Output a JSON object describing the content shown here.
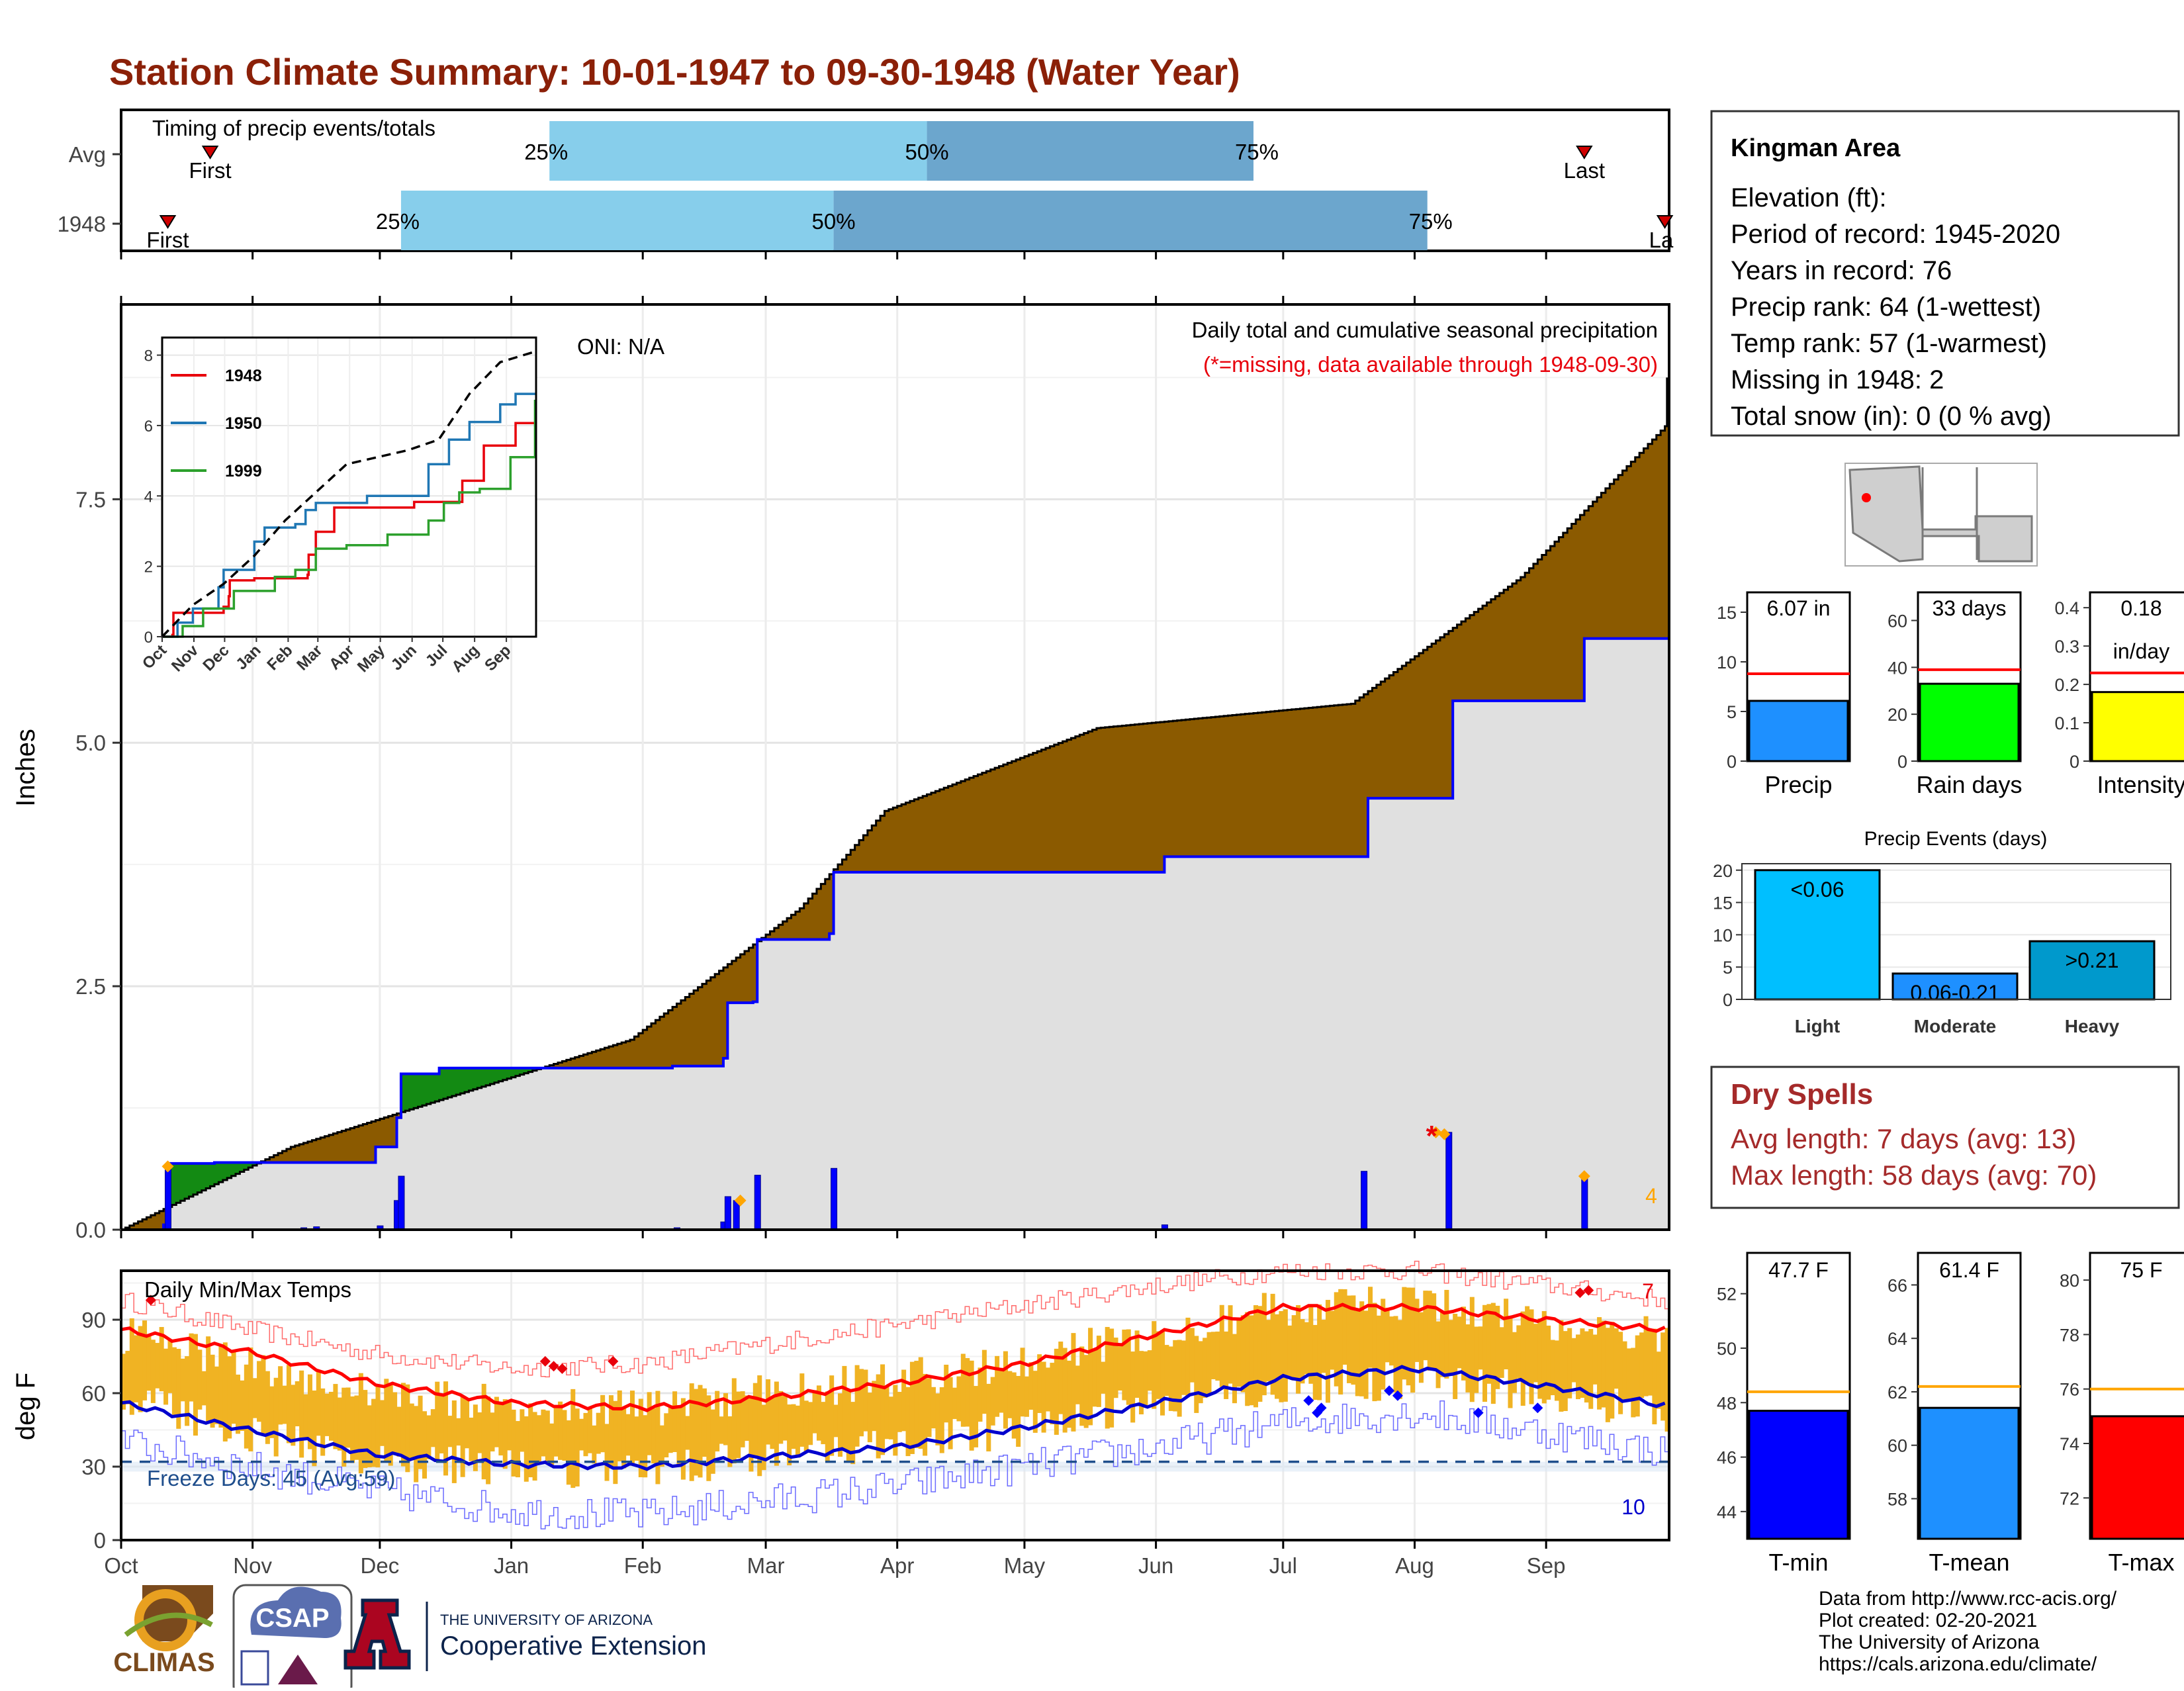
{
  "title": "Station Climate Summary: 10-01-1947 to 09-30-1948 (Water Year)",
  "colors": {
    "title": "#8b2008",
    "accent_red": "#e8000b",
    "dry_spell": "#a52a2a",
    "cum_fill": "#8b5a00",
    "below_fill": "#138a13",
    "avg_fill": "#e0e0e0",
    "pct_light": "#87ceeb",
    "pct_dark": "#6ca6cd",
    "temp_bar": "#f0b323"
  },
  "timing_panel": {
    "label": "Timing of precip events/totals",
    "rows": [
      {
        "name": "Avg",
        "first_label": "First",
        "last_label": "Last",
        "first_doy": 21,
        "last_doy": 345,
        "p25": 101,
        "p50": 190,
        "p75": 267,
        "p25_label": "25%",
        "p50_label": "50%",
        "p75_label": "75%"
      },
      {
        "name": "1948",
        "first_label": "First",
        "last_label": "La",
        "first_doy": 11,
        "last_doy": 364,
        "p25": 66,
        "p50": 168,
        "p75": 308,
        "p25_label": "25%",
        "p50_label": "50%",
        "p75_label": "75%"
      }
    ]
  },
  "months": [
    "Oct",
    "Nov",
    "Dec",
    "Jan",
    "Feb",
    "Mar",
    "Apr",
    "May",
    "Jun",
    "Jul",
    "Aug",
    "Sep"
  ],
  "month_starts": [
    0,
    31,
    61,
    92,
    123,
    152,
    183,
    213,
    244,
    274,
    305,
    336
  ],
  "precip_panel": {
    "ylabel": "Inches",
    "ylim": [
      0,
      9.5
    ],
    "yticks": [
      0.0,
      2.5,
      5.0,
      7.5
    ],
    "ytick_labels": [
      "0.0",
      "2.5",
      "5.0",
      "7.5"
    ],
    "oni": "ONI: N/A",
    "heading": "Daily total and cumulative seasonal precipitation",
    "note": "(*=missing, data available through 1948-09-30)",
    "corner_count": "4"
  },
  "chart_data": [
    {
      "type": "area",
      "name": "cumulative-precip",
      "x_unit": "day of water year",
      "avg_cumulative": {
        "x": [
          0,
          40,
          120,
          160,
          180,
          230,
          290,
          330,
          364
        ],
        "y": [
          0.0,
          0.85,
          1.95,
          3.3,
          4.3,
          5.15,
          5.4,
          6.7,
          8.25
        ]
      },
      "observed_cumulative": {
        "x": [
          0,
          10,
          11,
          21,
          22,
          60,
          65,
          66,
          75,
          78,
          91,
          130,
          142,
          143,
          149,
          150,
          167,
          168,
          246,
          293,
          294,
          313,
          314,
          344,
          345,
          364
        ],
        "y": [
          0.0,
          0.05,
          0.68,
          0.68,
          0.69,
          0.85,
          1.15,
          1.6,
          1.66,
          1.66,
          1.66,
          1.68,
          1.76,
          2.33,
          2.34,
          2.98,
          3.04,
          3.67,
          3.83,
          3.83,
          4.43,
          4.43,
          5.43,
          5.43,
          6.07,
          6.07
        ]
      },
      "daily_bars": [
        {
          "day": 11,
          "value": 0.63
        },
        {
          "day": 43,
          "value": 0.02
        },
        {
          "day": 46,
          "value": 0.03
        },
        {
          "day": 61,
          "value": 0.04
        },
        {
          "day": 65,
          "value": 0.3
        },
        {
          "day": 66,
          "value": 0.55
        },
        {
          "day": 131,
          "value": 0.02
        },
        {
          "day": 142,
          "value": 0.08
        },
        {
          "day": 143,
          "value": 0.34
        },
        {
          "day": 145,
          "value": 0.3
        },
        {
          "day": 150,
          "value": 0.56
        },
        {
          "day": 157,
          "value": 0.01
        },
        {
          "day": 168,
          "value": 0.63
        },
        {
          "day": 246,
          "value": 0.05
        },
        {
          "day": 293,
          "value": 0.6
        },
        {
          "day": 313,
          "value": 1.0
        },
        {
          "day": 345,
          "value": 0.55
        }
      ],
      "missing_markers": [
        {
          "day": 309,
          "value": 1.0
        }
      ],
      "markers": [
        {
          "day": 11,
          "value": 0.65
        },
        {
          "day": 146,
          "value": 0.3
        },
        {
          "day": 310,
          "value": 1.0
        },
        {
          "day": 312,
          "value": 0.98
        },
        {
          "day": 345,
          "value": 0.55
        }
      ],
      "max_cumulative_top": 8.75
    },
    {
      "type": "line",
      "name": "inset-comparison",
      "categories": [
        "Oct",
        "Nov",
        "Dec",
        "Jan",
        "Feb",
        "Mar",
        "Apr",
        "May",
        "Jun",
        "Jul",
        "Aug",
        "Sep"
      ],
      "ylim": [
        0,
        8.5
      ],
      "yticks": [
        0,
        2,
        4,
        6,
        8
      ],
      "avg_dashed": {
        "x": [
          0,
          30,
          60,
          90,
          120,
          150,
          180,
          210,
          240,
          270,
          300,
          330,
          364
        ],
        "y": [
          0.0,
          0.9,
          1.5,
          2.3,
          3.3,
          4.1,
          4.9,
          5.1,
          5.3,
          5.6,
          6.9,
          7.8,
          8.1
        ]
      },
      "series": [
        {
          "name": "1948",
          "color": "#e8000b",
          "x": [
            0,
            10,
            11,
            60,
            65,
            66,
            90,
            142,
            143,
            150,
            168,
            246,
            293,
            313,
            314,
            345,
            364
          ],
          "y": [
            0.0,
            0.05,
            0.68,
            0.85,
            1.15,
            1.6,
            1.66,
            1.76,
            2.33,
            2.98,
            3.67,
            3.83,
            4.43,
            4.43,
            5.43,
            6.07,
            6.07
          ]
        },
        {
          "name": "1950",
          "color": "#1f77b4",
          "x": [
            0,
            15,
            30,
            55,
            60,
            90,
            100,
            130,
            140,
            150,
            200,
            250,
            260,
            280,
            300,
            330,
            345,
            364
          ],
          "y": [
            0.0,
            0.4,
            0.8,
            1.4,
            1.9,
            2.7,
            3.1,
            3.2,
            3.6,
            3.8,
            4.0,
            4.0,
            4.9,
            5.6,
            6.1,
            6.6,
            6.9,
            6.9
          ]
        },
        {
          "name": "1999",
          "color": "#2ca02c",
          "x": [
            0,
            20,
            40,
            70,
            110,
            130,
            150,
            180,
            220,
            260,
            275,
            290,
            310,
            340,
            364
          ],
          "y": [
            0.0,
            0.3,
            0.8,
            1.3,
            1.7,
            1.9,
            2.5,
            2.6,
            2.9,
            3.3,
            3.8,
            4.1,
            4.2,
            5.1,
            6.7
          ]
        }
      ]
    },
    {
      "type": "bar",
      "name": "daily-temps",
      "ylim": [
        0,
        110
      ],
      "yticks": [
        0,
        30,
        60,
        90
      ],
      "avg_max": {
        "x": [
          0,
          30,
          60,
          92,
          123,
          152,
          183,
          213,
          244,
          274,
          305,
          336,
          364
        ],
        "y": [
          86,
          77,
          64,
          56,
          54,
          58,
          64,
          72,
          84,
          95,
          95,
          90,
          86
        ]
      },
      "avg_min": {
        "x": [
          0,
          30,
          60,
          92,
          123,
          152,
          183,
          213,
          244,
          274,
          305,
          336,
          364
        ],
        "y": [
          56,
          45,
          35,
          31,
          30,
          34,
          38,
          46,
          56,
          66,
          70,
          63,
          55
        ]
      },
      "record_high": {
        "x": [
          0,
          30,
          60,
          92,
          123,
          152,
          183,
          213,
          244,
          274,
          305,
          336,
          364
        ],
        "y": [
          98,
          86,
          76,
          70,
          72,
          80,
          88,
          96,
          104,
          110,
          110,
          104,
          98
        ]
      },
      "record_low": {
        "x": [
          0,
          30,
          60,
          92,
          123,
          152,
          183,
          213,
          244,
          274,
          305,
          336,
          364
        ],
        "y": [
          40,
          30,
          20,
          12,
          10,
          16,
          22,
          30,
          38,
          48,
          52,
          44,
          36
        ]
      },
      "obs_high": {
        "x": [
          0,
          30,
          60,
          92,
          123,
          152,
          183,
          213,
          244,
          274,
          305,
          336,
          364
        ],
        "y": [
          84,
          72,
          60,
          56,
          54,
          60,
          66,
          72,
          86,
          95,
          96,
          90,
          82
        ]
      },
      "obs_low": {
        "x": [
          0,
          30,
          60,
          92,
          123,
          152,
          183,
          213,
          244,
          274,
          305,
          336,
          364
        ],
        "y": [
          58,
          44,
          32,
          30,
          28,
          34,
          40,
          46,
          56,
          62,
          66,
          60,
          52
        ]
      },
      "record_high_days": [
        7,
        100,
        102,
        104,
        116,
        344,
        346
      ],
      "record_high_values": [
        98,
        73,
        71,
        70,
        73,
        101,
        102
      ],
      "record_low_days": [
        280,
        282,
        283,
        299,
        301,
        320,
        334
      ],
      "record_low_values": [
        57,
        52,
        54,
        61,
        59,
        52,
        54
      ],
      "freeze_line": 32
    }
  ],
  "temp_panel": {
    "ylabel": "deg F",
    "title": "Daily Min/Max Temps",
    "freeze_days": "Freeze Days: 45 (Avg:59)",
    "count_high": "7",
    "count_low": "10"
  },
  "station_box": {
    "name": "Kingman Area",
    "lines": [
      "Elevation (ft):",
      "Period of record: 1945-2020",
      "Years in record: 76",
      "Precip rank: 64 (1-wettest)",
      "Temp rank: 57 (1-warmest)",
      "Missing in 1948: 2",
      "Total snow (in): 0 (0 % avg)"
    ]
  },
  "summary_bars": [
    {
      "label": "Precip",
      "value": 6.07,
      "avg": 8.8,
      "text": "6.07 in",
      "text2": "",
      "ylim": [
        0,
        17
      ],
      "yticks": [
        0,
        5,
        10,
        15
      ],
      "color": "#1e90ff"
    },
    {
      "label": "Rain days",
      "value": 33,
      "avg": 39,
      "text": "33 days",
      "text2": "",
      "ylim": [
        0,
        72
      ],
      "yticks": [
        0,
        20,
        40,
        60
      ],
      "color": "#00ff00"
    },
    {
      "label": "Intensity",
      "value": 0.18,
      "avg": 0.23,
      "text": "0.18",
      "text2": "in/day",
      "ylim": [
        0,
        0.44
      ],
      "yticks": [
        0.0,
        0.1,
        0.2,
        0.3,
        0.4
      ],
      "color": "#ffff00"
    }
  ],
  "events_chart": {
    "title": "Precip Events (days)",
    "ylim": [
      0,
      21
    ],
    "yticks": [
      0,
      5,
      10,
      15,
      20
    ],
    "bars": [
      {
        "label": "Light",
        "value": 20,
        "text": "<0.06",
        "color": "#00bfff"
      },
      {
        "label": "Moderate",
        "value": 4,
        "text": "0.06-0.21",
        "color": "#1e90ff"
      },
      {
        "label": "Heavy",
        "value": 9,
        "text": ">0.21",
        "color": "#0099cc"
      }
    ]
  },
  "dry_spells": {
    "title": "Dry Spells",
    "avg_line": "Avg length: 7 days (avg: 13)",
    "max_line": "Max length: 58 days (avg: 70)"
  },
  "temp_summary": [
    {
      "label": "T-min",
      "value": 47.7,
      "avg": 48.4,
      "text": "47.7 F",
      "ylim": [
        43,
        53.5
      ],
      "yticks": [
        44,
        46,
        48,
        50,
        52
      ],
      "color": "#0000ff"
    },
    {
      "label": "T-mean",
      "value": 61.4,
      "avg": 62.2,
      "text": "61.4 F",
      "ylim": [
        56.5,
        67.2
      ],
      "yticks": [
        58,
        60,
        62,
        64,
        66
      ],
      "color": "#1e90ff"
    },
    {
      "label": "T-max",
      "value": 75,
      "avg": 76,
      "text": "75 F",
      "ylim": [
        70.5,
        81
      ],
      "yticks": [
        72,
        74,
        76,
        78,
        80
      ],
      "color": "#ff0000"
    }
  ],
  "footer": {
    "lines": [
      "Data from http://www.rcc-acis.org/",
      "Plot created: 02-20-2021",
      "The University of Arizona",
      "https://cals.arizona.edu/climate/"
    ],
    "logo_climas": "CLIMAS",
    "logo_csap": "CSAP",
    "logo_csap_url": "http://cals.arizona.edu/climate",
    "logo_ua_top": "THE UNIVERSITY OF ARIZONA",
    "logo_ua_bottom": "Cooperative Extension"
  }
}
